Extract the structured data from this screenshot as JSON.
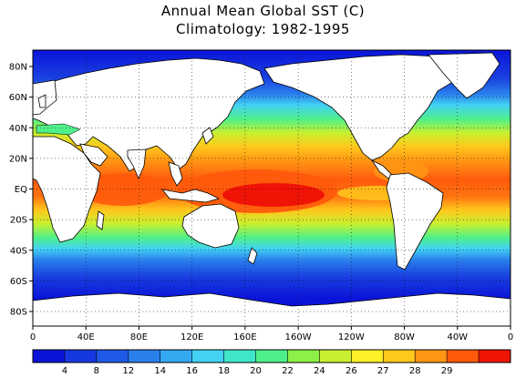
{
  "title_line1": "Annual Mean Global SST (C)",
  "title_line2": "Climatology: 1982-1995",
  "map": {
    "lat_labels": [
      "80N",
      "60N",
      "40N",
      "20N",
      "EQ",
      "20S",
      "40S",
      "60S",
      "80S"
    ],
    "lon_labels": [
      "0",
      "40E",
      "80E",
      "120E",
      "160E",
      "160W",
      "120W",
      "80W",
      "40W",
      "0"
    ],
    "grid": "dotted"
  },
  "colorbar": {
    "colors": [
      "#0a14d8",
      "#1638e0",
      "#1f5ae6",
      "#2a80ec",
      "#35a8f2",
      "#42d2f4",
      "#3fe6c8",
      "#4ef08a",
      "#8cf048",
      "#c8f030",
      "#fff028",
      "#ffc81c",
      "#ff9614",
      "#ff5a0c",
      "#f01406"
    ],
    "labels": [
      "4",
      "8",
      "12",
      "14",
      "16",
      "18",
      "20",
      "22",
      "24",
      "26",
      "27",
      "28",
      "29"
    ]
  }
}
